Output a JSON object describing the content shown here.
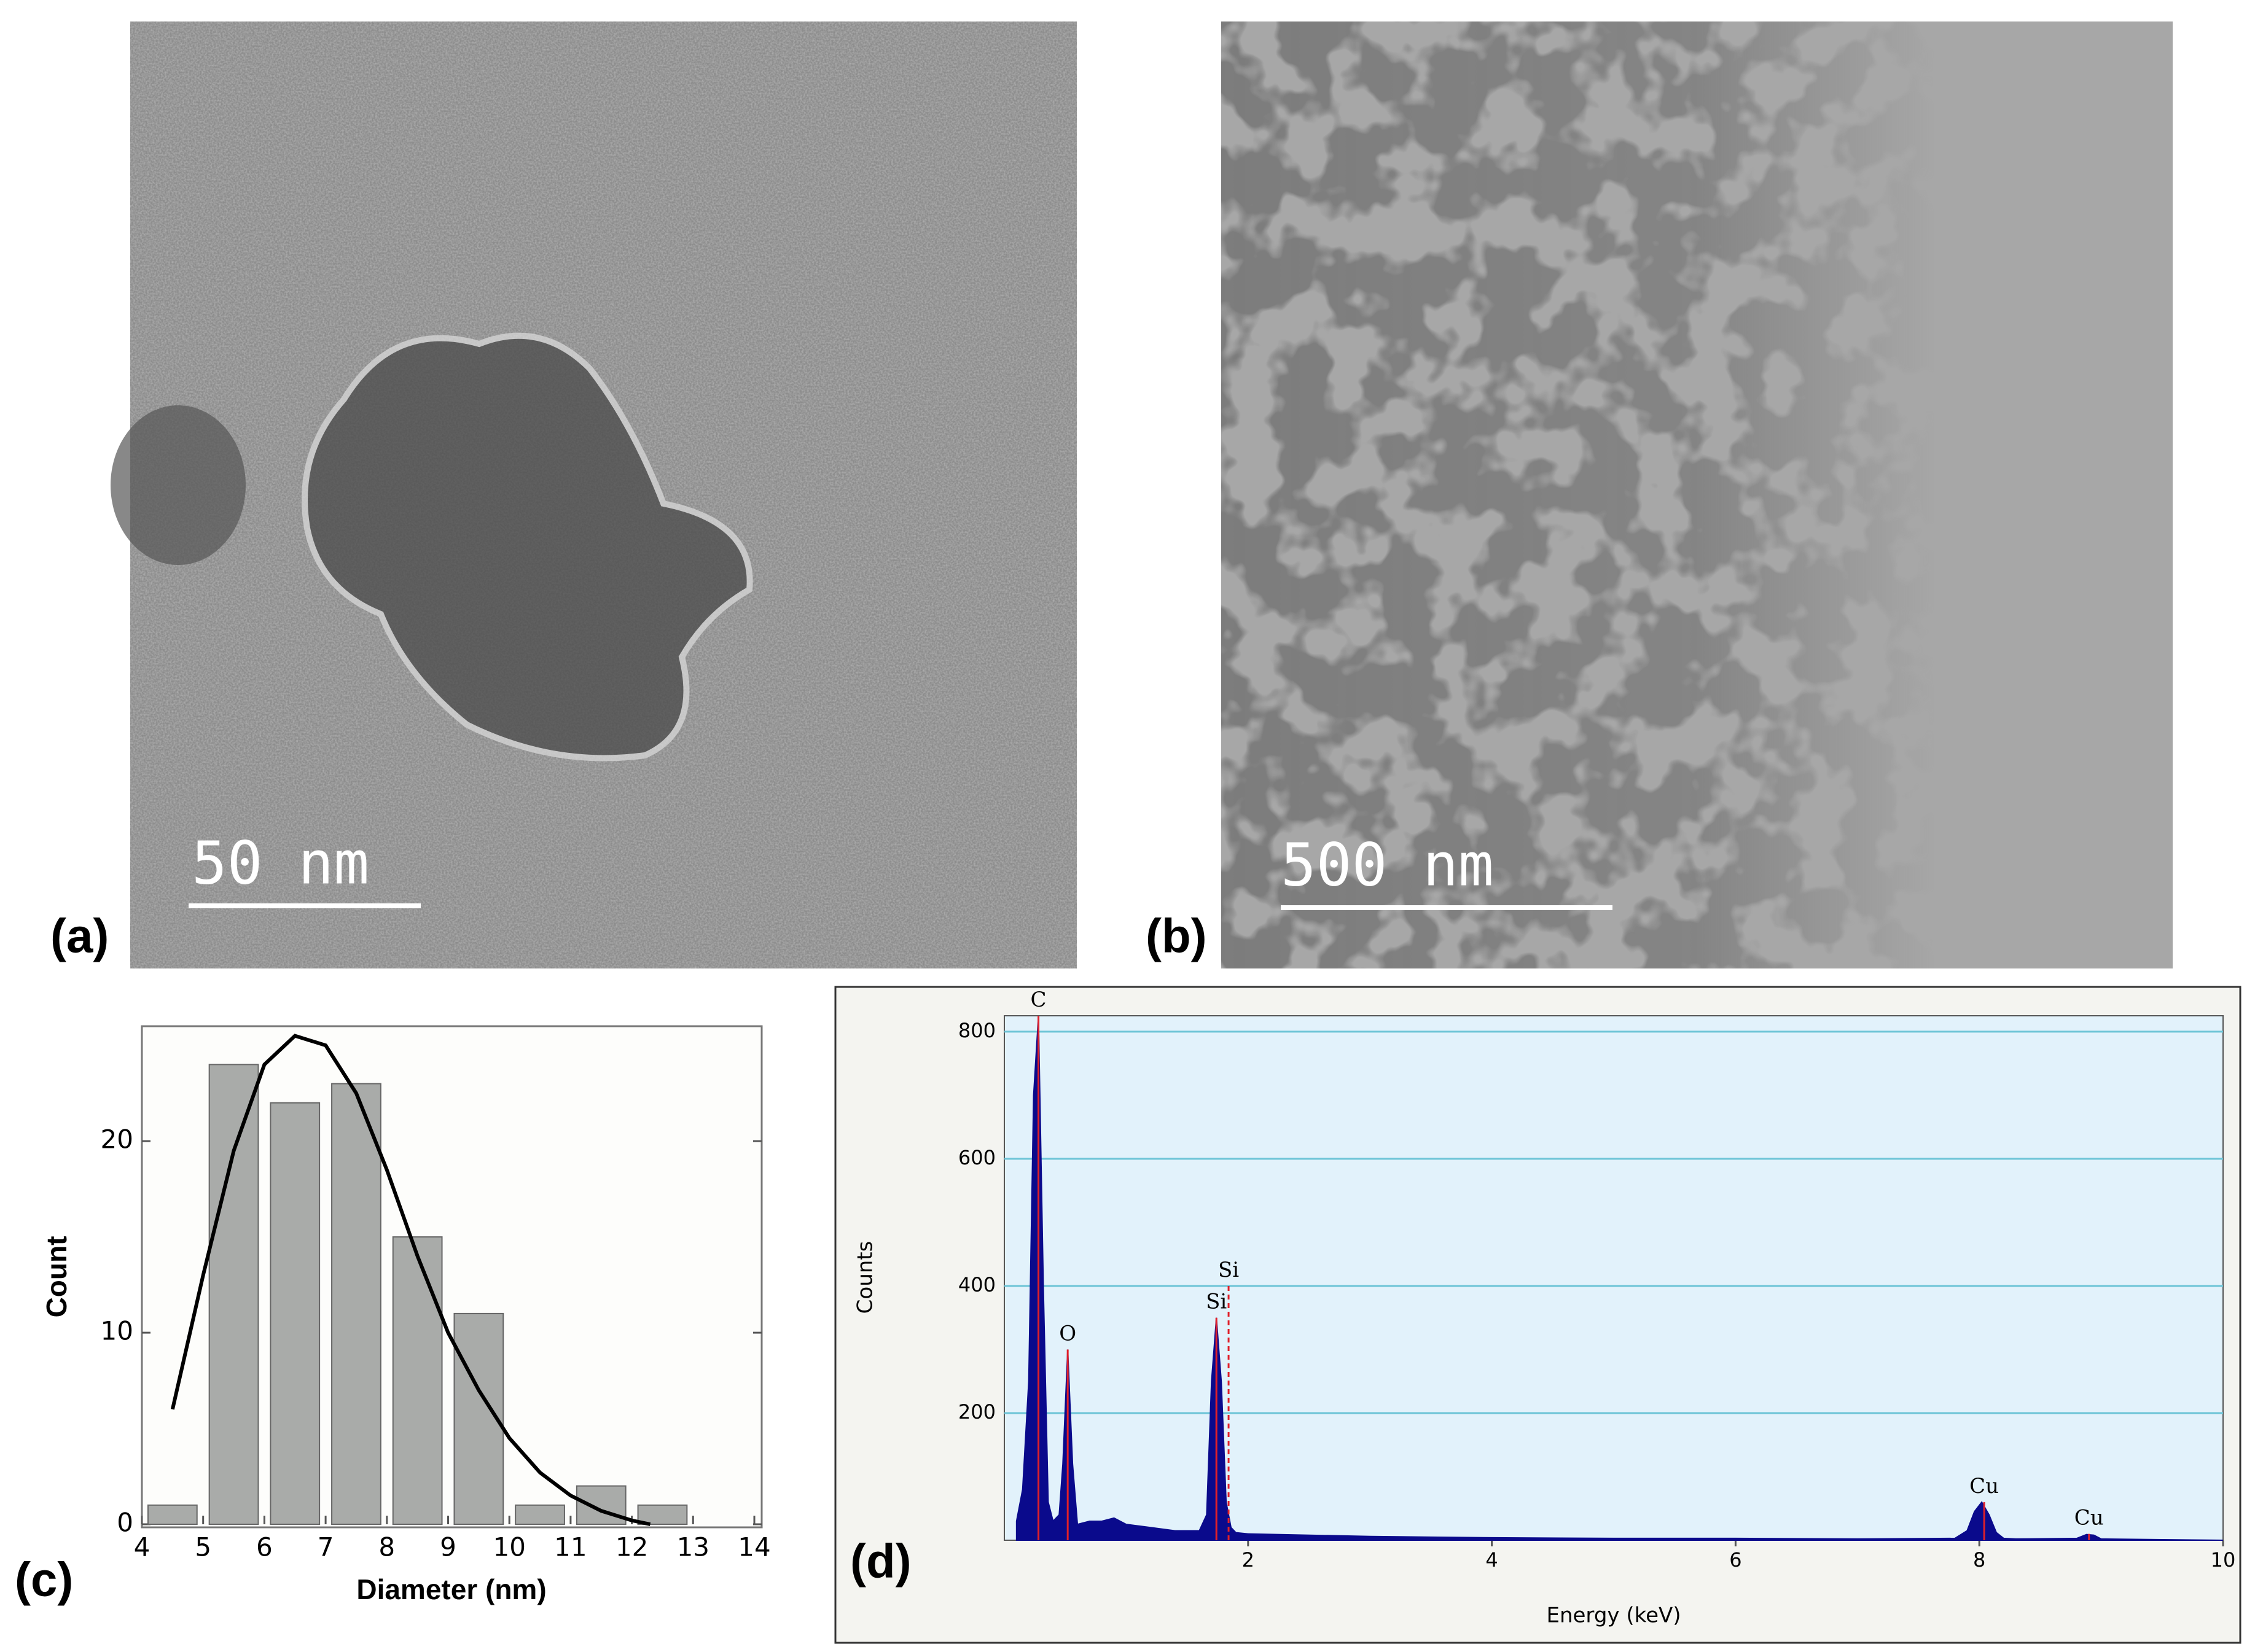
{
  "panels": [
    {
      "label": "(a)",
      "scale_bar": "50 nm"
    },
    {
      "label": "(b)",
      "scale_bar": "500 nm"
    }
  ],
  "chart_data": [
    {
      "type": "histogram",
      "panel_label": "(c)",
      "x_label": "Diameter (nm)",
      "y_label": "Count",
      "bins": [
        4,
        5,
        6,
        7,
        8,
        9,
        10,
        11,
        12,
        13,
        14
      ],
      "values": [
        1,
        24,
        22,
        23,
        15,
        11,
        1,
        2,
        1,
        0
      ],
      "color": "#a9aba9",
      "fit": {
        "color": "#000000",
        "x": [
          4.5,
          5,
          5.5,
          6,
          6.5,
          7,
          7.5,
          8,
          8.5,
          9,
          9.5,
          10,
          10.5,
          11,
          11.5,
          12,
          12.3
        ],
        "values": [
          6,
          13,
          19.5,
          24,
          25.5,
          25,
          22.5,
          18.5,
          14,
          10,
          7,
          4.5,
          2.7,
          1.5,
          0.7,
          0.2,
          0
        ]
      },
      "xlim": [
        4,
        14
      ],
      "xticks": [
        4,
        5,
        6,
        7,
        8,
        9,
        10,
        11,
        12,
        13,
        14
      ],
      "ylim": [
        0,
        26
      ],
      "yticks": [
        0,
        10,
        20
      ]
    },
    {
      "type": "area",
      "panel_label": "(d)",
      "x_label": "Energy (keV)",
      "y_label": "Counts",
      "color": "#0a0a8c",
      "marker_color": "#e0202a",
      "grid": true,
      "x": [
        0.1,
        0.15,
        0.2,
        0.24,
        0.28,
        0.32,
        0.36,
        0.4,
        0.45,
        0.48,
        0.52,
        0.56,
        0.6,
        0.7,
        0.8,
        0.9,
        1.0,
        1.2,
        1.4,
        1.6,
        1.66,
        1.7,
        1.74,
        1.78,
        1.82,
        1.86,
        1.9,
        2.0,
        2.5,
        3.0,
        3.5,
        4.0,
        5.0,
        6.0,
        7.0,
        7.8,
        7.9,
        7.96,
        8.02,
        8.08,
        8.14,
        8.2,
        8.3,
        8.8,
        8.88,
        8.94,
        9.0,
        9.5,
        10.0
      ],
      "values": [
        30,
        80,
        250,
        700,
        825,
        400,
        60,
        30,
        40,
        120,
        300,
        120,
        25,
        30,
        30,
        35,
        25,
        20,
        15,
        15,
        40,
        250,
        350,
        250,
        60,
        20,
        12,
        10,
        8,
        6,
        5,
        4,
        3,
        3,
        2,
        3,
        15,
        45,
        60,
        40,
        12,
        3,
        2,
        3,
        9,
        8,
        2,
        1,
        0
      ],
      "annotations": [
        {
          "text": "C",
          "x": 0.28,
          "y": 825
        },
        {
          "text": "O",
          "x": 0.52,
          "y": 300
        },
        {
          "text": "Si",
          "x": 1.74,
          "y": 350
        },
        {
          "text": "Si",
          "x": 1.84,
          "y": 400
        },
        {
          "text": "Cu",
          "x": 8.04,
          "y": 60
        },
        {
          "text": "Cu",
          "x": 8.9,
          "y": 10
        }
      ],
      "xlim": [
        0,
        10
      ],
      "xticks": [
        2,
        4,
        6,
        8,
        10
      ],
      "ylim": [
        0,
        825
      ],
      "yticks": [
        200,
        400,
        600,
        800
      ]
    }
  ]
}
